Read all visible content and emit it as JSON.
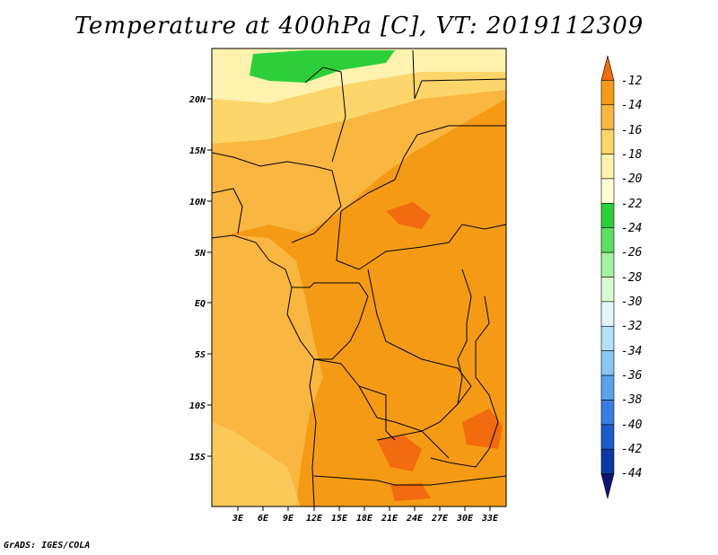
{
  "title": "Temperature at 400hPa [C], VT: 2019112309",
  "credit": "GrADS: IGES/COLA",
  "axes": {
    "lat_ticks": [
      "20N",
      "15N",
      "10N",
      "5N",
      "EQ",
      "5S",
      "10S",
      "15S"
    ],
    "lon_ticks": [
      "3E",
      "6E",
      "9E",
      "12E",
      "15E",
      "18E",
      "21E",
      "24E",
      "27E",
      "30E",
      "33E"
    ]
  },
  "colorbar": {
    "labels": [
      "-12",
      "-14",
      "-16",
      "-18",
      "-20",
      "-22",
      "-24",
      "-26",
      "-28",
      "-30",
      "-32",
      "-34",
      "-36",
      "-38",
      "-40",
      "-42",
      "-44"
    ],
    "colors": [
      "#f26b0e",
      "#f59a14",
      "#f9b640",
      "#fcd66a",
      "#fef2ae",
      "#ffffd4",
      "#2ccf3a",
      "#5fe063",
      "#a4f2a1",
      "#d8fbd4",
      "#e4f5fc",
      "#b4e0f8",
      "#8ac6f1",
      "#5aa3ea",
      "#3a7ee3",
      "#1d5acb",
      "#0c3aa5",
      "#0c1474"
    ]
  }
}
